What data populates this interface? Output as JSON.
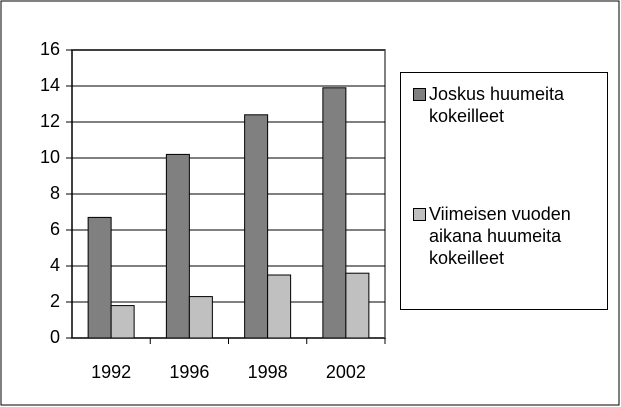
{
  "chart_data": {
    "type": "bar",
    "categories": [
      "1992",
      "1996",
      "1998",
      "2002"
    ],
    "series": [
      {
        "name": "Joskus huumeita kokeilleet",
        "color": "#808080",
        "values": [
          6.7,
          10.2,
          12.4,
          13.9
        ]
      },
      {
        "name": "Viimeisen vuoden aikana huumeita kokeilleet",
        "color": "#c0c0c0",
        "values": [
          1.8,
          2.3,
          3.5,
          3.6
        ]
      }
    ],
    "ylim": [
      0,
      16
    ],
    "yticks": [
      0,
      2,
      4,
      6,
      8,
      10,
      12,
      14,
      16
    ],
    "grid": true,
    "legend": "right"
  }
}
